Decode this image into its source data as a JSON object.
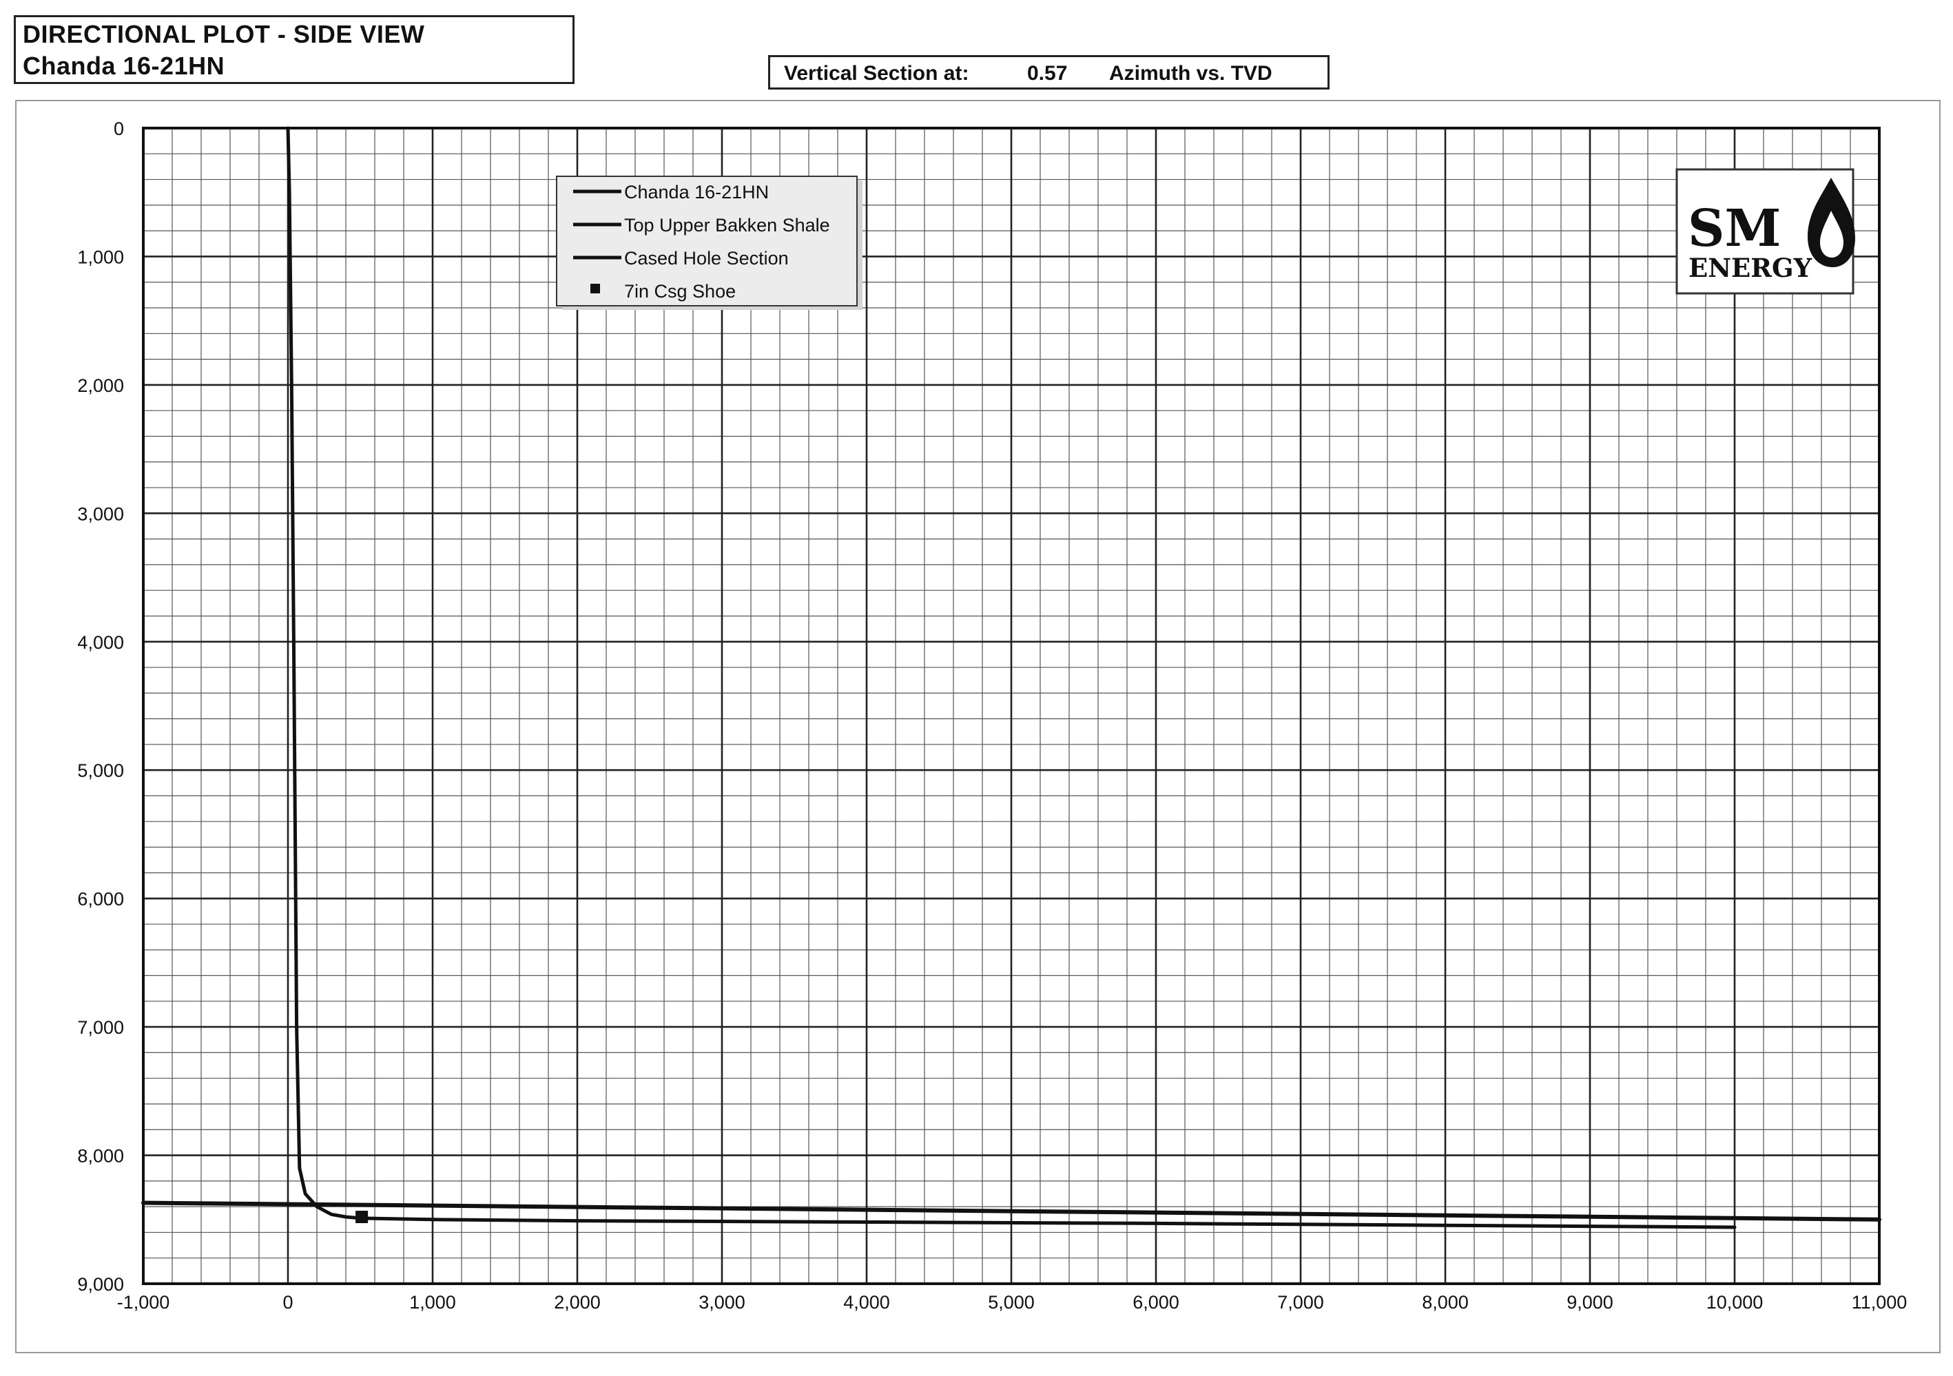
{
  "header": {
    "title": "DIRECTIONAL PLOT - SIDE VIEW",
    "well_name": "Chanda 16-21HN"
  },
  "vertical_section": {
    "label": "Vertical Section at:",
    "value": "0.57",
    "suffix": "Azimuth vs. TVD"
  },
  "logo": {
    "line1": "SM",
    "line2": "ENERGY"
  },
  "chart_data": {
    "type": "line",
    "title": "",
    "xlabel": "",
    "ylabel": "",
    "xlim": [
      -1000,
      11000
    ],
    "ylim": [
      9000,
      0
    ],
    "y_inverted": true,
    "grid": true,
    "x_ticks": [
      -1000,
      0,
      1000,
      2000,
      3000,
      4000,
      5000,
      6000,
      7000,
      8000,
      9000,
      10000,
      11000
    ],
    "x_tick_labels": [
      "-1,000",
      "0",
      "1,000",
      "2,000",
      "3,000",
      "4,000",
      "5,000",
      "6,000",
      "7,000",
      "8,000",
      "9,000",
      "10,000",
      "11,000"
    ],
    "y_ticks": [
      0,
      1000,
      2000,
      3000,
      4000,
      5000,
      6000,
      7000,
      8000,
      9000
    ],
    "y_tick_labels": [
      "0",
      "1,000",
      "2,000",
      "3,000",
      "4,000",
      "5,000",
      "6,000",
      "7,000",
      "8,000",
      "9,000"
    ],
    "legend_position": "top-left",
    "series": [
      {
        "name": "Chanda 16-21HN",
        "style": "line",
        "color": "#111111",
        "x": [
          0,
          10,
          25,
          40,
          50,
          60,
          80,
          120,
          200,
          300,
          400,
          500,
          1000,
          2000,
          4000,
          6000,
          8000,
          10000
        ],
        "y": [
          0,
          500,
          2000,
          4000,
          5500,
          7000,
          8100,
          8300,
          8400,
          8460,
          8480,
          8490,
          8500,
          8510,
          8520,
          8530,
          8545,
          8560
        ]
      },
      {
        "name": "Top Upper Bakken Shale",
        "style": "line",
        "color": "#111111",
        "x": [
          -1000,
          11000
        ],
        "y": [
          8370,
          8500
        ]
      },
      {
        "name": "Cased Hole Section",
        "style": "line",
        "color": "#111111",
        "x": [
          0,
          10,
          25,
          40,
          50,
          60,
          80,
          120,
          200,
          300,
          400,
          500
        ],
        "y": [
          0,
          500,
          2000,
          4000,
          5500,
          7000,
          8100,
          8300,
          8400,
          8460,
          8480,
          8490
        ]
      },
      {
        "name": "7in Csg Shoe",
        "style": "marker",
        "color": "#111111",
        "x": [
          510
        ],
        "y": [
          8480
        ]
      }
    ]
  }
}
